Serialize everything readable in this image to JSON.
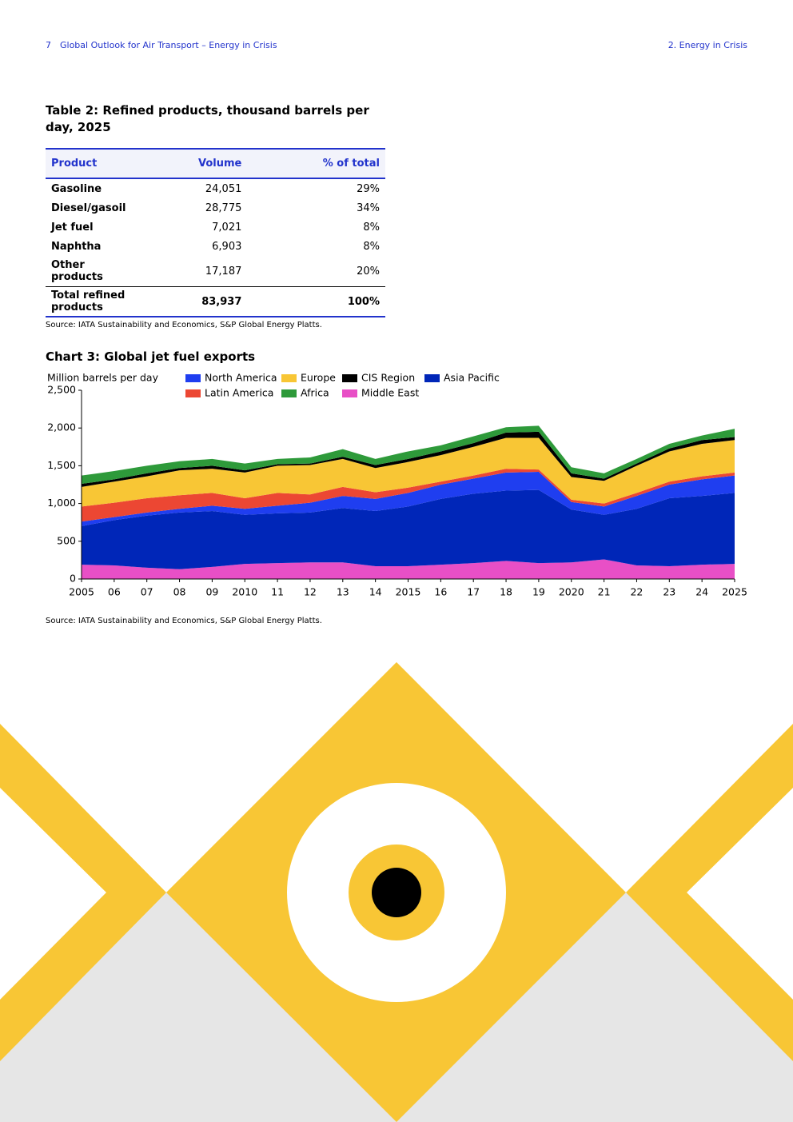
{
  "header": {
    "page_number": "7",
    "report_title": "Global Outlook for Air Transport – Energy in Crisis",
    "section": "2. Energy in Crisis"
  },
  "table": {
    "title": "Table 2: Refined products, thousand barrels per day, 2025",
    "columns": [
      "Product",
      "Volume",
      "% of total"
    ],
    "rows": [
      [
        "Gasoline",
        "24,051",
        "29%"
      ],
      [
        "Diesel/gasoil",
        "28,775",
        "34%"
      ],
      [
        "Jet fuel",
        "7,021",
        "8%"
      ],
      [
        "Naphtha",
        "6,903",
        "8%"
      ],
      [
        "Other products",
        "17,187",
        "20%"
      ]
    ],
    "total": [
      "Total refined products",
      "83,937",
      "100%"
    ],
    "source": "Source: IATA Sustainability and Economics, S&P Global Energy Platts."
  },
  "chart_data": {
    "type": "stacked-area",
    "title": "Chart 3: Global jet fuel exports",
    "y_label": "Million barrels per day",
    "categories": [
      "2005",
      "06",
      "07",
      "08",
      "09",
      "2010",
      "11",
      "12",
      "13",
      "14",
      "2015",
      "16",
      "17",
      "18",
      "19",
      "2020",
      "21",
      "22",
      "23",
      "24",
      "2025"
    ],
    "series": [
      {
        "name": "Middle East",
        "color": "#e84fc6",
        "values": [
          190,
          180,
          150,
          130,
          160,
          200,
          210,
          220,
          220,
          170,
          170,
          190,
          210,
          240,
          210,
          220,
          260,
          180,
          170,
          190,
          200
        ]
      },
      {
        "name": "Asia Pacific",
        "color": "#0026b8",
        "values": [
          510,
          600,
          690,
          750,
          740,
          650,
          660,
          660,
          720,
          730,
          790,
          870,
          920,
          930,
          970,
          700,
          590,
          750,
          900,
          910,
          940
        ]
      },
      {
        "name": "North America",
        "color": "#1f3ef0",
        "values": [
          60,
          40,
          40,
          50,
          70,
          80,
          100,
          130,
          160,
          160,
          180,
          190,
          200,
          240,
          240,
          100,
          110,
          170,
          180,
          220,
          230
        ]
      },
      {
        "name": "Latin America",
        "color": "#ec4733",
        "values": [
          200,
          190,
          190,
          180,
          170,
          140,
          170,
          110,
          120,
          90,
          70,
          40,
          40,
          50,
          30,
          30,
          40,
          40,
          40,
          40,
          40
        ]
      },
      {
        "name": "Europe",
        "color": "#f8c635",
        "values": [
          260,
          280,
          290,
          330,
          320,
          340,
          360,
          390,
          370,
          320,
          340,
          350,
          380,
          410,
          420,
          300,
          300,
          360,
          400,
          430,
          430
        ]
      },
      {
        "name": "CIS Region",
        "color": "#000000",
        "values": [
          40,
          30,
          40,
          30,
          40,
          30,
          20,
          20,
          30,
          40,
          40,
          50,
          50,
          70,
          80,
          50,
          30,
          30,
          40,
          50,
          40
        ]
      },
      {
        "name": "Africa",
        "color": "#2e9a3a",
        "values": [
          110,
          110,
          100,
          90,
          90,
          90,
          70,
          80,
          100,
          80,
          100,
          80,
          90,
          70,
          80,
          80,
          70,
          60,
          60,
          60,
          110
        ]
      }
    ],
    "ylim": [
      0,
      2500
    ],
    "yticks": [
      0,
      500,
      {
        "value": 1000,
        "label": "1,000"
      },
      {
        "value": 1500,
        "label": "1,500"
      },
      {
        "value": 2000,
        "label": "2,000"
      },
      {
        "value": 2500,
        "label": "2,500"
      }
    ],
    "source": "Source: IATA Sustainability and Economics, S&P Global Energy Platts."
  }
}
